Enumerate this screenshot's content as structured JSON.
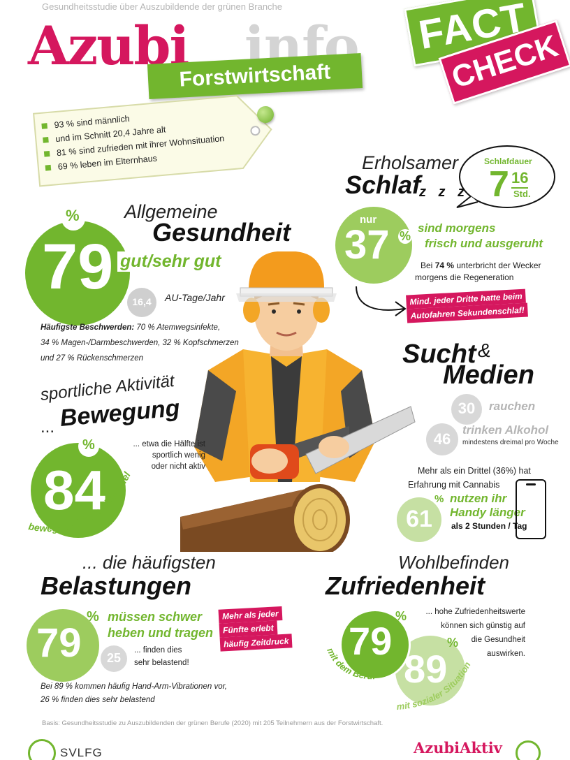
{
  "header": {
    "subtitle": "Gesundheitsstudie über Auszubildende der grünen Branche",
    "logo_azubi": "Azubi",
    "logo_info": "info",
    "banner": "Forstwirtschaft",
    "fact_line1": "FACT",
    "fact_line2": "CHECK"
  },
  "tag": {
    "items": [
      "93 % sind männlich",
      "und im Schnitt 20,4 Jahre alt",
      "81 % sind zufrieden mit ihrer Wohnsituation",
      "69 % leben im Elternhaus"
    ]
  },
  "health": {
    "title_light": "Allgemeine",
    "title_bold": "Gesundheit",
    "percent_sign": "%",
    "value": "79",
    "label": "gut/sehr gut",
    "au_value": "16,4",
    "au_label": "AU-Tage/Jahr",
    "complaints_lead": "Häufigste Beschwerden:",
    "complaints_rest": " 70 % Atemwegsinfekte,",
    "complaints_line2": "34 % Magen-/Darmbeschwerden, 32 % Kopfschmerzen",
    "complaints_line3": "und 27 % Rückenschmerzen"
  },
  "sleep": {
    "title_light": "Erholsamer",
    "title_bold": "Schlaf",
    "bubble_label": "Schlafdauer",
    "hours": "7",
    "fraction": "16",
    "unit": "Std.",
    "nur": "nur",
    "value": "37",
    "percent_sign": "%",
    "label_line1": "sind morgens",
    "label_line2": "frisch und ausgeruht",
    "wecker_pre": "Bei ",
    "wecker_pct": "74 %",
    "wecker_post": " unterbricht der Wecker",
    "wecker_line2": "morgens die Regeneration",
    "alert_line1": "Mind. jeder Dritte hatte beim",
    "alert_line2": "Autofahren Sekundenschlaf!"
  },
  "media": {
    "title_sucht": "Sucht",
    "amp": "&",
    "title_medien": "Medien",
    "smoke_value": "30",
    "smoke_label": "rauchen",
    "alcohol_value": "46",
    "alcohol_label": "trinken Alkohol",
    "alcohol_sub": "mindestens dreimal pro Woche",
    "cannabis_line1": "Mehr als ein Drittel (36%) hat",
    "cannabis_line2": "Erfahrung mit Cannabis",
    "handy_value": "61",
    "percent_sign": "%",
    "handy_line1": "nutzen ihr",
    "handy_line2": "Handy länger",
    "handy_line3": "als 2 Stunden / Tag"
  },
  "movement": {
    "title_light": "sportliche Aktivität",
    "title_prefix": "...",
    "title_bold": "Bewegung",
    "value": "84",
    "percent_sign": "%",
    "curved_label": "bewegen sich im Alltag viel",
    "note_line1": "... etwa die Hälfte ist",
    "note_line2": "sportlich wenig",
    "note_line3": "oder nicht aktiv"
  },
  "stress": {
    "title_light": "... die häufigsten",
    "title_bold": "Belastungen",
    "value": "79",
    "percent_sign": "%",
    "label_line1": "müssen schwer",
    "label_line2": "heben und tragen",
    "small_value": "25",
    "small_line1": "... finden dies",
    "small_line2": "sehr belastend!",
    "alert_line1": "Mehr als jeder",
    "alert_line2": "Fünfte erlebt",
    "alert_line3": "häufig Zeitdruck",
    "vibration_line1": "Bei 89 % kommen häufig Hand-Arm-Vibrationen vor,",
    "vibration_line2": "26 % finden dies sehr belastend"
  },
  "wellbeing": {
    "title_light": "Wohlbefinden",
    "title_bold": "Zufriedenheit",
    "note_line1": "... hohe Zufriedenheitswerte",
    "note_line2": "können sich günstig auf",
    "note_line3": "die Gesundheit",
    "note_line4": "auswirken.",
    "job_value": "79",
    "job_label": "mit dem Beruf",
    "social_value": "89",
    "social_label": "mit sozialer Situation",
    "percent_sign": "%"
  },
  "footer": {
    "basis": "Basis: Gesundheitsstudie zu Auszubildenden der grünen Berufe (2020) mit 205 Teilnehmern aus der Forstwirtschaft.",
    "svlfg": "SVLFG",
    "azubiaktiv": "AzubiAktiv"
  },
  "colors": {
    "green": "#72b62e",
    "light_green": "#c6e0a3",
    "pink": "#d5175e",
    "grey": "#cccccc"
  }
}
